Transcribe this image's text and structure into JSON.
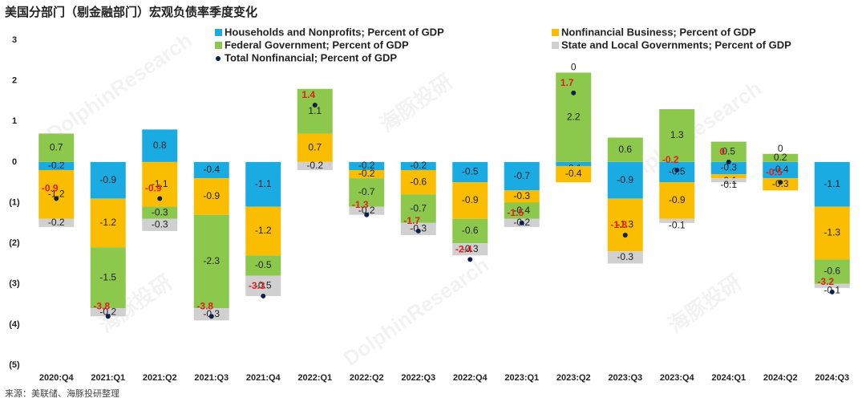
{
  "chart_data": {
    "type": "stacked-bar",
    "title": "美国分部门（剔金融部门）宏观负债率季度变化",
    "source": "来源：美联储、海豚投研整理",
    "watermark": "DolphinResearch",
    "watermark_cn": "海豚投研",
    "categories": [
      "2020:Q4",
      "2021:Q1",
      "2021:Q2",
      "2021:Q3",
      "2021:Q4",
      "2022:Q1",
      "2022:Q2",
      "2022:Q3",
      "2022:Q4",
      "2023:Q1",
      "2023:Q2",
      "2023:Q3",
      "2023:Q4",
      "2024:Q1",
      "2024:Q2",
      "2024:Q3"
    ],
    "series": [
      {
        "name": "Households and Nonprofits; Percent of GDP",
        "color": "#1aabe3",
        "values": [
          -0.2,
          -0.9,
          0.8,
          -0.4,
          -1.1,
          0,
          -0.2,
          -0.2,
          -0.5,
          -0.7,
          -0.1,
          -0.9,
          -0.5,
          -0.3,
          -0.4,
          -1.1
        ]
      },
      {
        "name": "Nonfinancial Business; Percent of GDP",
        "color": "#fbbd00",
        "values": [
          -1.2,
          -1.2,
          -1.1,
          -0.9,
          -1.2,
          0.7,
          -0.2,
          -0.6,
          -0.9,
          -0.3,
          -0.4,
          -1.3,
          -0.9,
          -0.1,
          -0.3,
          -1.3
        ]
      },
      {
        "name": "Federal Government; Percent of GDP",
        "color": "#8cc84b",
        "values": [
          0.7,
          -1.5,
          -0.3,
          -2.3,
          -0.5,
          1.1,
          -0.7,
          -0.7,
          -0.6,
          -0.4,
          2.2,
          0.6,
          1.3,
          0.5,
          0.2,
          -0.6
        ]
      },
      {
        "name": "State and Local Governments; Percent of GDP",
        "color": "#d0d0d0",
        "values": [
          -0.2,
          -0.2,
          -0.3,
          -0.3,
          -0.5,
          -0.2,
          -0.2,
          -0.3,
          -0.3,
          -0.2,
          0,
          -0.3,
          -0.1,
          -0.1,
          0,
          -0.1
        ]
      }
    ],
    "total": {
      "name": "Total Nonfinancial; Percent of GDP",
      "color": "#0d1f4d",
      "label_color": "#e02020",
      "values": [
        -0.9,
        -3.8,
        -0.9,
        -3.8,
        -3.3,
        1.4,
        -1.3,
        -1.7,
        -2.4,
        -1.5,
        1.7,
        -1.8,
        -0.2,
        0,
        -0.5,
        -3.2
      ]
    },
    "ylim": [
      -5,
      3
    ],
    "yticks": [
      3,
      2,
      1,
      0,
      {
        "value": -1,
        "label": "(1)"
      },
      {
        "value": -2,
        "label": "(2)"
      },
      {
        "value": -3,
        "label": "(3)"
      },
      {
        "value": -4,
        "label": "(4)"
      },
      {
        "value": -5,
        "label": "(5)"
      }
    ],
    "grid": false
  }
}
